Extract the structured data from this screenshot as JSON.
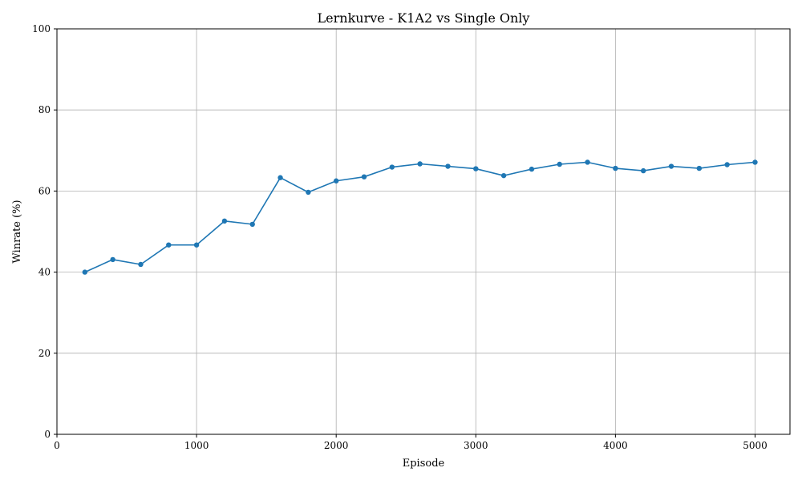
{
  "chart_data": {
    "type": "line",
    "title": "Lernkurve - K1A2 vs Single Only",
    "xlabel": "Episode",
    "ylabel": "Winrate (%)",
    "xlim": [
      0,
      5250
    ],
    "ylim": [
      0,
      100
    ],
    "x_ticks": [
      0,
      1000,
      2000,
      3000,
      4000,
      5000
    ],
    "y_ticks": [
      0,
      20,
      40,
      60,
      80,
      100
    ],
    "grid": true,
    "series": [
      {
        "color": "#1f77b4",
        "marker": "circle",
        "x": [
          200,
          400,
          600,
          800,
          1000,
          1200,
          1400,
          1600,
          1800,
          2000,
          2200,
          2400,
          2600,
          2800,
          3000,
          3200,
          3400,
          3600,
          3800,
          4000,
          4200,
          4400,
          4600,
          4800,
          5000
        ],
        "y": [
          40.0,
          43.1,
          41.9,
          46.7,
          46.7,
          52.6,
          51.8,
          63.3,
          59.7,
          62.5,
          63.5,
          65.9,
          66.7,
          66.1,
          65.5,
          63.8,
          65.4,
          66.6,
          67.1,
          65.6,
          65.0,
          66.1,
          65.6,
          66.5,
          67.1
        ]
      }
    ]
  },
  "colors": {
    "grid": "#b0b0b0",
    "axis": "#000000"
  }
}
